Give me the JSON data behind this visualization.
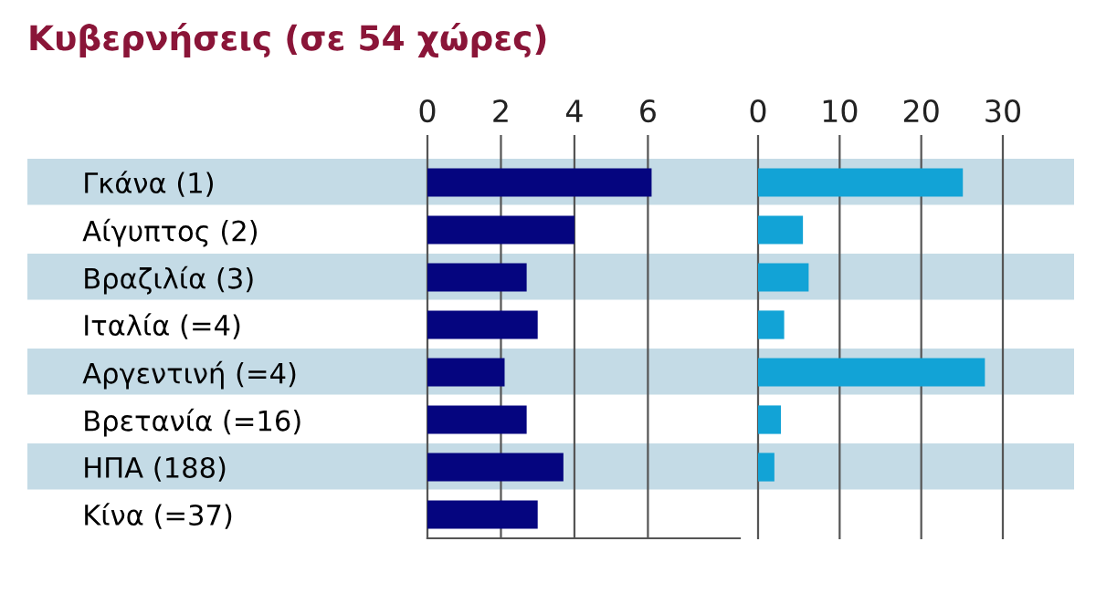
{
  "chart_data": [
    {
      "type": "bar",
      "orientation": "horizontal",
      "title": "Κυβερνήσεις (σε 54 χώρες)",
      "categories": [
        "Γκάνα (1)",
        "Αίγυπτος (2)",
        "Βραζιλία (3)",
        "Ιταλία (=4)",
        "Αργεντινή (=4)",
        "Βρετανία (=16)",
        "ΗΠΑ (188)",
        "Κίνα (=37)"
      ],
      "values": [
        6.1,
        4.0,
        2.7,
        3.0,
        2.1,
        2.7,
        3.7,
        3.0
      ],
      "color": "#05057f",
      "xlim": [
        0,
        8.5
      ],
      "xticks": [
        0,
        2,
        4,
        6
      ],
      "grid": "x"
    },
    {
      "type": "bar",
      "orientation": "horizontal",
      "tick_labels": "x",
      "categories": [
        null,
        null,
        null,
        null,
        null,
        null,
        null,
        null
      ],
      "values": [
        25.1,
        5.5,
        6.2,
        3.2,
        27.8,
        2.8,
        2.0,
        null
      ],
      "color": "#12a3d6",
      "xlim": [
        0,
        30
      ],
      "xticks": [
        0,
        10,
        20,
        30
      ],
      "grid": "x"
    }
  ]
}
